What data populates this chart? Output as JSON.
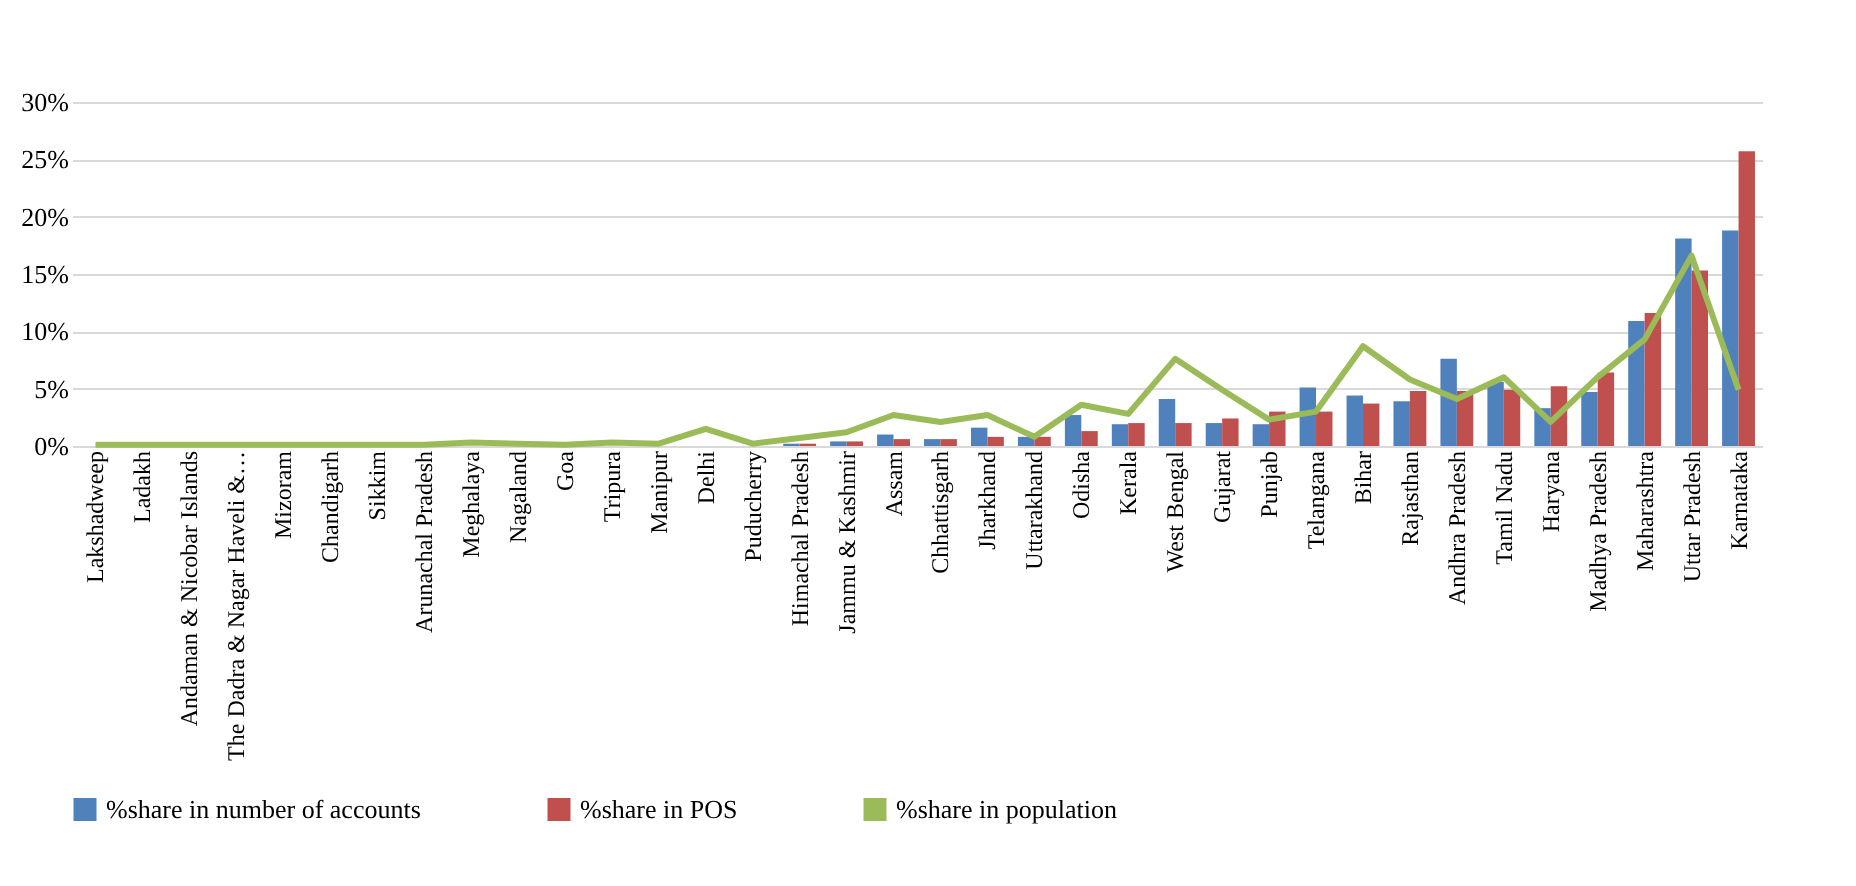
{
  "chart_data": {
    "type": "bar",
    "categories": [
      "Lakshadweep",
      "Ladakh",
      "Andaman & Nicobar Islands",
      "The Dadra & Nagar Haveli &…",
      "Mizoram",
      "Chandigarh",
      "Sikkim",
      "Arunachal Pradesh",
      "Meghalaya",
      "Nagaland",
      "Goa",
      "Tripura",
      "Manipur",
      "Delhi",
      "Puducherry",
      "Himachal Pradesh",
      "Jammu & Kashmir",
      "Assam",
      "Chhattisgarh",
      "Jharkhand",
      "Uttarakhand",
      "Odisha",
      "Kerala",
      "West Bengal",
      "Gujarat",
      "Punjab",
      "Telangana",
      "Bihar",
      "Rajasthan",
      "Andhra Pradesh",
      "Tamil Nadu",
      "Haryana",
      "Madhya Pradesh",
      "Maharashtra",
      "Uttar Pradesh",
      "Karnataka"
    ],
    "series": [
      {
        "name": "%share in number of accounts",
        "color": "#4f81bd",
        "values": [
          0,
          0,
          0,
          0,
          0,
          0,
          0,
          0,
          0,
          0,
          0,
          0,
          0,
          0,
          0,
          0.2,
          0.4,
          1.0,
          0.6,
          1.6,
          0.8,
          2.7,
          1.9,
          4.1,
          2.0,
          1.9,
          5.1,
          4.4,
          3.9,
          7.6,
          5.6,
          3.3,
          4.7,
          10.9,
          18.1,
          18.8
        ]
      },
      {
        "name": "%share in POS",
        "color": "#c0504d",
        "values": [
          0,
          0,
          0,
          0,
          0,
          0,
          0,
          0,
          0,
          0,
          0,
          0,
          0,
          0,
          0,
          0.2,
          0.4,
          0.6,
          0.6,
          0.8,
          0.8,
          1.3,
          2.0,
          2.0,
          2.4,
          3.0,
          3.0,
          3.7,
          4.8,
          4.8,
          4.9,
          5.2,
          6.4,
          11.6,
          15.3,
          25.7
        ]
      },
      {
        "name": "%share in population",
        "color": "#9bbb59",
        "type": "line",
        "values": [
          0.1,
          0.1,
          0.1,
          0.1,
          0.1,
          0.1,
          0.1,
          0.1,
          0.3,
          0.2,
          0.1,
          0.3,
          0.2,
          1.5,
          0.2,
          0.7,
          1.2,
          2.7,
          2.1,
          2.7,
          0.8,
          3.6,
          2.8,
          7.6,
          4.9,
          2.3,
          3.0,
          8.7,
          5.8,
          4.1,
          6.0,
          2.1,
          6.0,
          9.3,
          16.6,
          4.9
        ]
      }
    ],
    "ylim": [
      0,
      30
    ],
    "yticks": [
      {
        "value": 0,
        "label": "0%"
      },
      {
        "value": 5,
        "label": "5%"
      },
      {
        "value": 10,
        "label": "10%"
      },
      {
        "value": 15,
        "label": "15%"
      },
      {
        "value": 20,
        "label": "20%"
      },
      {
        "value": 25,
        "label": "25%"
      },
      {
        "value": 30,
        "label": "30%"
      }
    ],
    "grid": "y",
    "legend": "bottom"
  }
}
